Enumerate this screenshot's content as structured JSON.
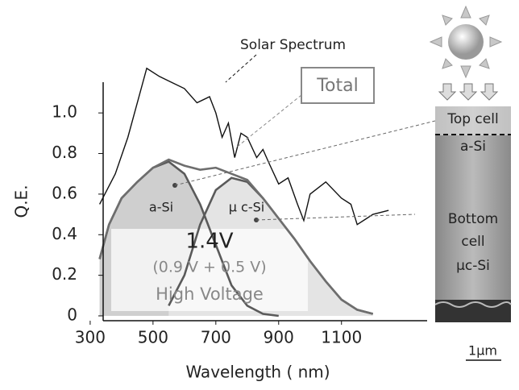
{
  "chart_data": {
    "type": "line",
    "xlabel": "Wavelength ( nm)",
    "ylabel": "Q.E.",
    "xlim": [
      290,
      1270
    ],
    "ylim": [
      0,
      1.35
    ],
    "xticks": [
      300,
      500,
      700,
      900,
      1100
    ],
    "yticks": [
      0,
      0.2,
      0.4,
      0.6,
      0.8,
      {
        "value": 1,
        "label": "1.0"
      }
    ],
    "series": [
      {
        "name": "a-Si",
        "color": "#5a5a5a",
        "fill": "#cfcfcf",
        "x": [
          330,
          360,
          400,
          450,
          500,
          550,
          600,
          650,
          700,
          750,
          800,
          850,
          900
        ],
        "values": [
          0.28,
          0.45,
          0.58,
          0.66,
          0.73,
          0.76,
          0.7,
          0.55,
          0.35,
          0.15,
          0.05,
          0.01,
          0
        ]
      },
      {
        "name": "μ c-Si",
        "color": "#5a5a5a",
        "fill": "#e4e4e4",
        "x": [
          550,
          600,
          650,
          700,
          750,
          800,
          850,
          900,
          950,
          1000,
          1050,
          1100,
          1150,
          1200
        ],
        "values": [
          0.05,
          0.2,
          0.45,
          0.62,
          0.68,
          0.66,
          0.58,
          0.48,
          0.38,
          0.27,
          0.17,
          0.08,
          0.03,
          0.01
        ]
      },
      {
        "name": "Total",
        "color": "#6e6e6e",
        "x": [
          330,
          360,
          400,
          450,
          500,
          550,
          600,
          650,
          700,
          750,
          800,
          850,
          900,
          950,
          1000,
          1050,
          1100,
          1150,
          1200
        ],
        "values": [
          0.28,
          0.45,
          0.58,
          0.66,
          0.73,
          0.77,
          0.74,
          0.72,
          0.73,
          0.7,
          0.67,
          0.58,
          0.48,
          0.38,
          0.27,
          0.17,
          0.08,
          0.03,
          0.01
        ]
      },
      {
        "name": "Solar Spectrum",
        "color": "#111111",
        "x": [
          330,
          380,
          420,
          450,
          480,
          520,
          560,
          600,
          640,
          680,
          700,
          720,
          740,
          760,
          780,
          800,
          830,
          850,
          870,
          900,
          930,
          960,
          980,
          1000,
          1050,
          1100,
          1130,
          1150,
          1180,
          1200,
          1250
        ],
        "values": [
          0.55,
          0.7,
          0.88,
          1.05,
          1.22,
          1.18,
          1.15,
          1.12,
          1.05,
          1.08,
          1.0,
          0.88,
          0.95,
          0.78,
          0.9,
          0.88,
          0.78,
          0.82,
          0.75,
          0.65,
          0.68,
          0.55,
          0.47,
          0.6,
          0.66,
          0.58,
          0.55,
          0.45,
          0.48,
          0.5,
          0.52
        ]
      }
    ],
    "annotations": [
      "1.4V",
      "(0.9 V + 0.5 V)",
      "High Voltage"
    ],
    "cell_labels": [
      "Top cell",
      "a-Si",
      "Bottom",
      "cell",
      "μc-Si"
    ],
    "scale_bar": "1μm"
  }
}
